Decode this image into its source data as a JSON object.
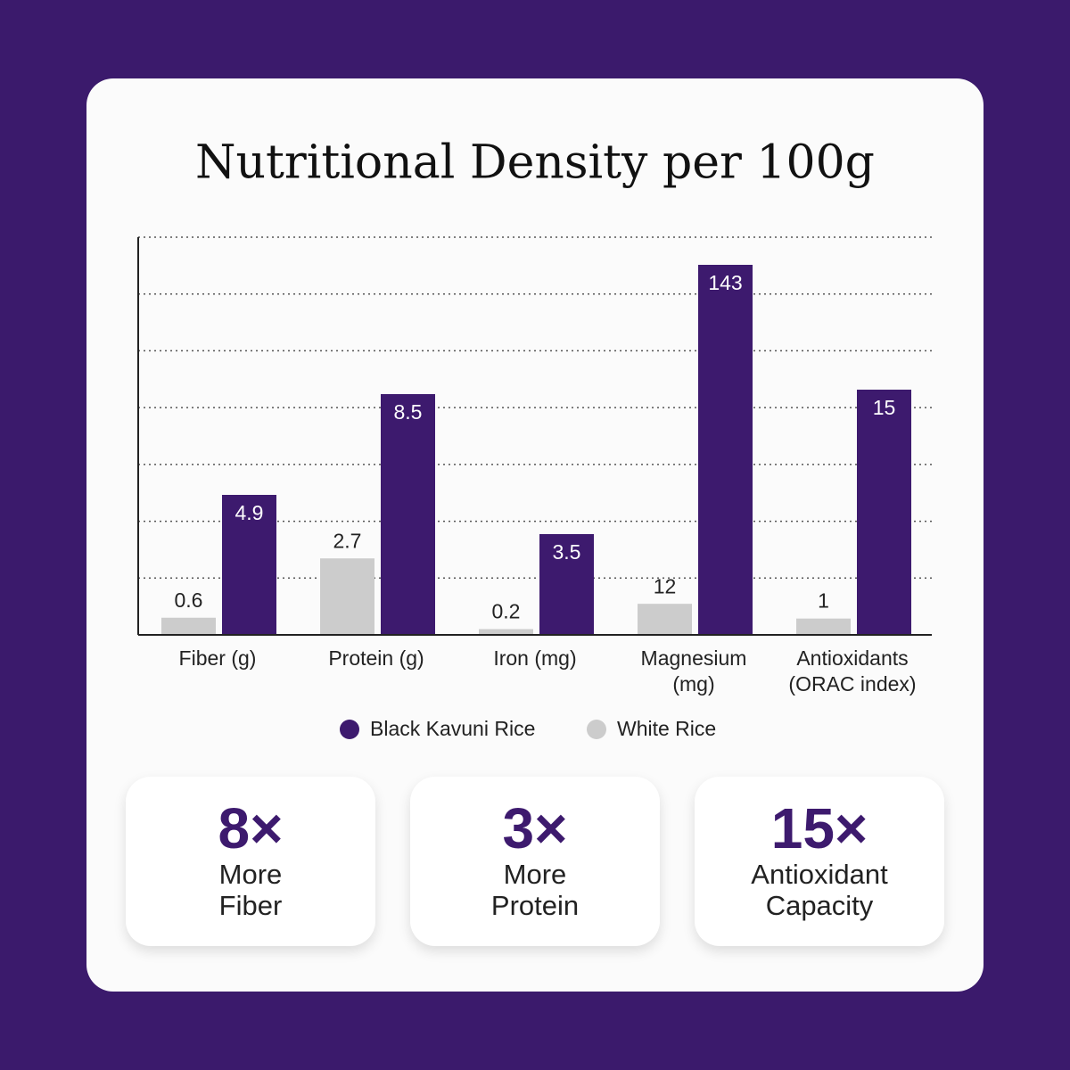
{
  "chart_data": {
    "type": "bar",
    "title": "Nutritional Density per 100g",
    "categories": [
      "Fiber (g)",
      "Protein (g)",
      "Iron (mg)",
      "Magnesium (mg)",
      "Antioxidants (ORAC index)"
    ],
    "series": [
      {
        "name": "Black Kavuni Rice",
        "color": "#3d1a6e",
        "values": [
          4.9,
          8.5,
          3.5,
          143,
          15
        ]
      },
      {
        "name": "White Rice",
        "color": "#cccccc",
        "values": [
          0.6,
          2.7,
          0.2,
          12,
          1
        ]
      }
    ],
    "grid": true
  },
  "highlights": [
    {
      "value": "8×",
      "label": "More Fiber"
    },
    {
      "value": "3×",
      "label": "More Protein"
    },
    {
      "value": "15×",
      "label": "Antioxidant Capacity"
    }
  ]
}
